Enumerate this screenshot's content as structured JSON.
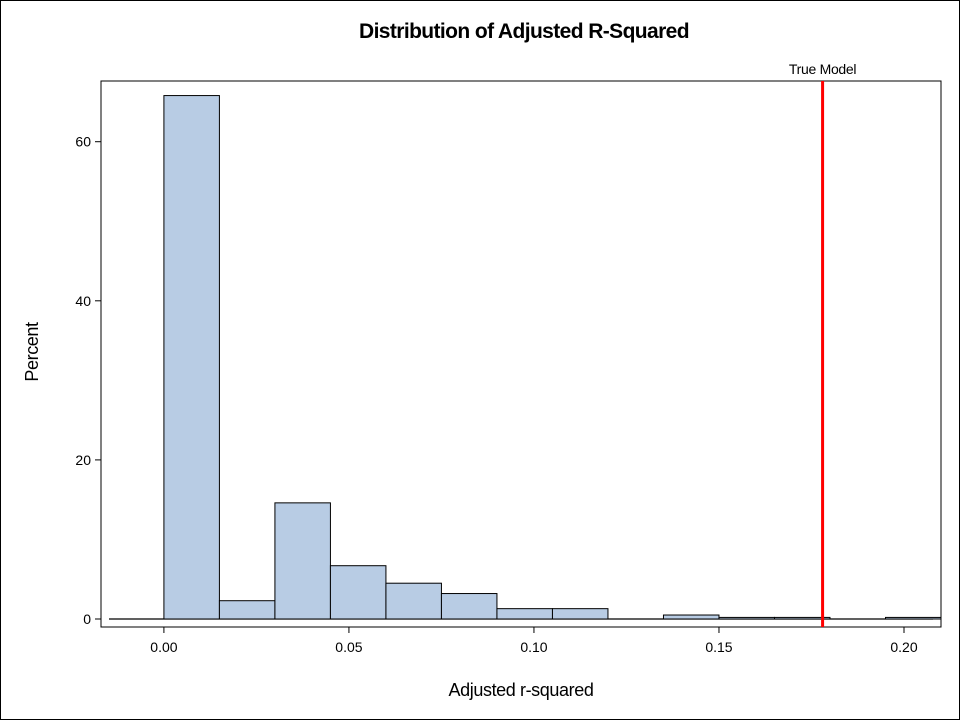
{
  "chart_data": {
    "type": "bar",
    "title": "Distribution of Adjusted R-Squared",
    "xlabel": "Adjusted r-squared",
    "ylabel": "Percent",
    "xlim": [
      -0.017,
      0.21
    ],
    "ylim": [
      0,
      66.5
    ],
    "bin_width": 0.015,
    "bins": [
      {
        "start": 0.0,
        "end": 0.015,
        "value": 65.8
      },
      {
        "start": 0.015,
        "end": 0.03,
        "value": 2.3
      },
      {
        "start": 0.03,
        "end": 0.045,
        "value": 14.6
      },
      {
        "start": 0.045,
        "end": 0.06,
        "value": 6.7
      },
      {
        "start": 0.06,
        "end": 0.075,
        "value": 4.5
      },
      {
        "start": 0.075,
        "end": 0.09,
        "value": 3.2
      },
      {
        "start": 0.09,
        "end": 0.105,
        "value": 1.3
      },
      {
        "start": 0.105,
        "end": 0.12,
        "value": 1.3
      },
      {
        "start": 0.12,
        "end": 0.135,
        "value": 0.0
      },
      {
        "start": 0.135,
        "end": 0.15,
        "value": 0.5
      },
      {
        "start": 0.15,
        "end": 0.165,
        "value": 0.2
      },
      {
        "start": 0.165,
        "end": 0.18,
        "value": 0.2
      },
      {
        "start": 0.18,
        "end": 0.195,
        "value": 0.0
      },
      {
        "start": 0.195,
        "end": 0.21,
        "value": 0.2
      }
    ],
    "x_ticks": [
      {
        "value": 0.0,
        "label": "0.00"
      },
      {
        "value": 0.05,
        "label": "0.05"
      },
      {
        "value": 0.1,
        "label": "0.10"
      },
      {
        "value": 0.15,
        "label": "0.15"
      },
      {
        "value": 0.2,
        "label": "0.20"
      }
    ],
    "y_ticks": [
      {
        "value": 0,
        "label": "0"
      },
      {
        "value": 20,
        "label": "20"
      },
      {
        "value": 40,
        "label": "40"
      },
      {
        "value": 60,
        "label": "60"
      }
    ],
    "reference_line": {
      "x": 0.178,
      "label": "True Model",
      "color": "#ff0000"
    },
    "bar_fill": "#b8cce4",
    "bar_stroke": "#000000",
    "grid": false,
    "legend": "none"
  }
}
